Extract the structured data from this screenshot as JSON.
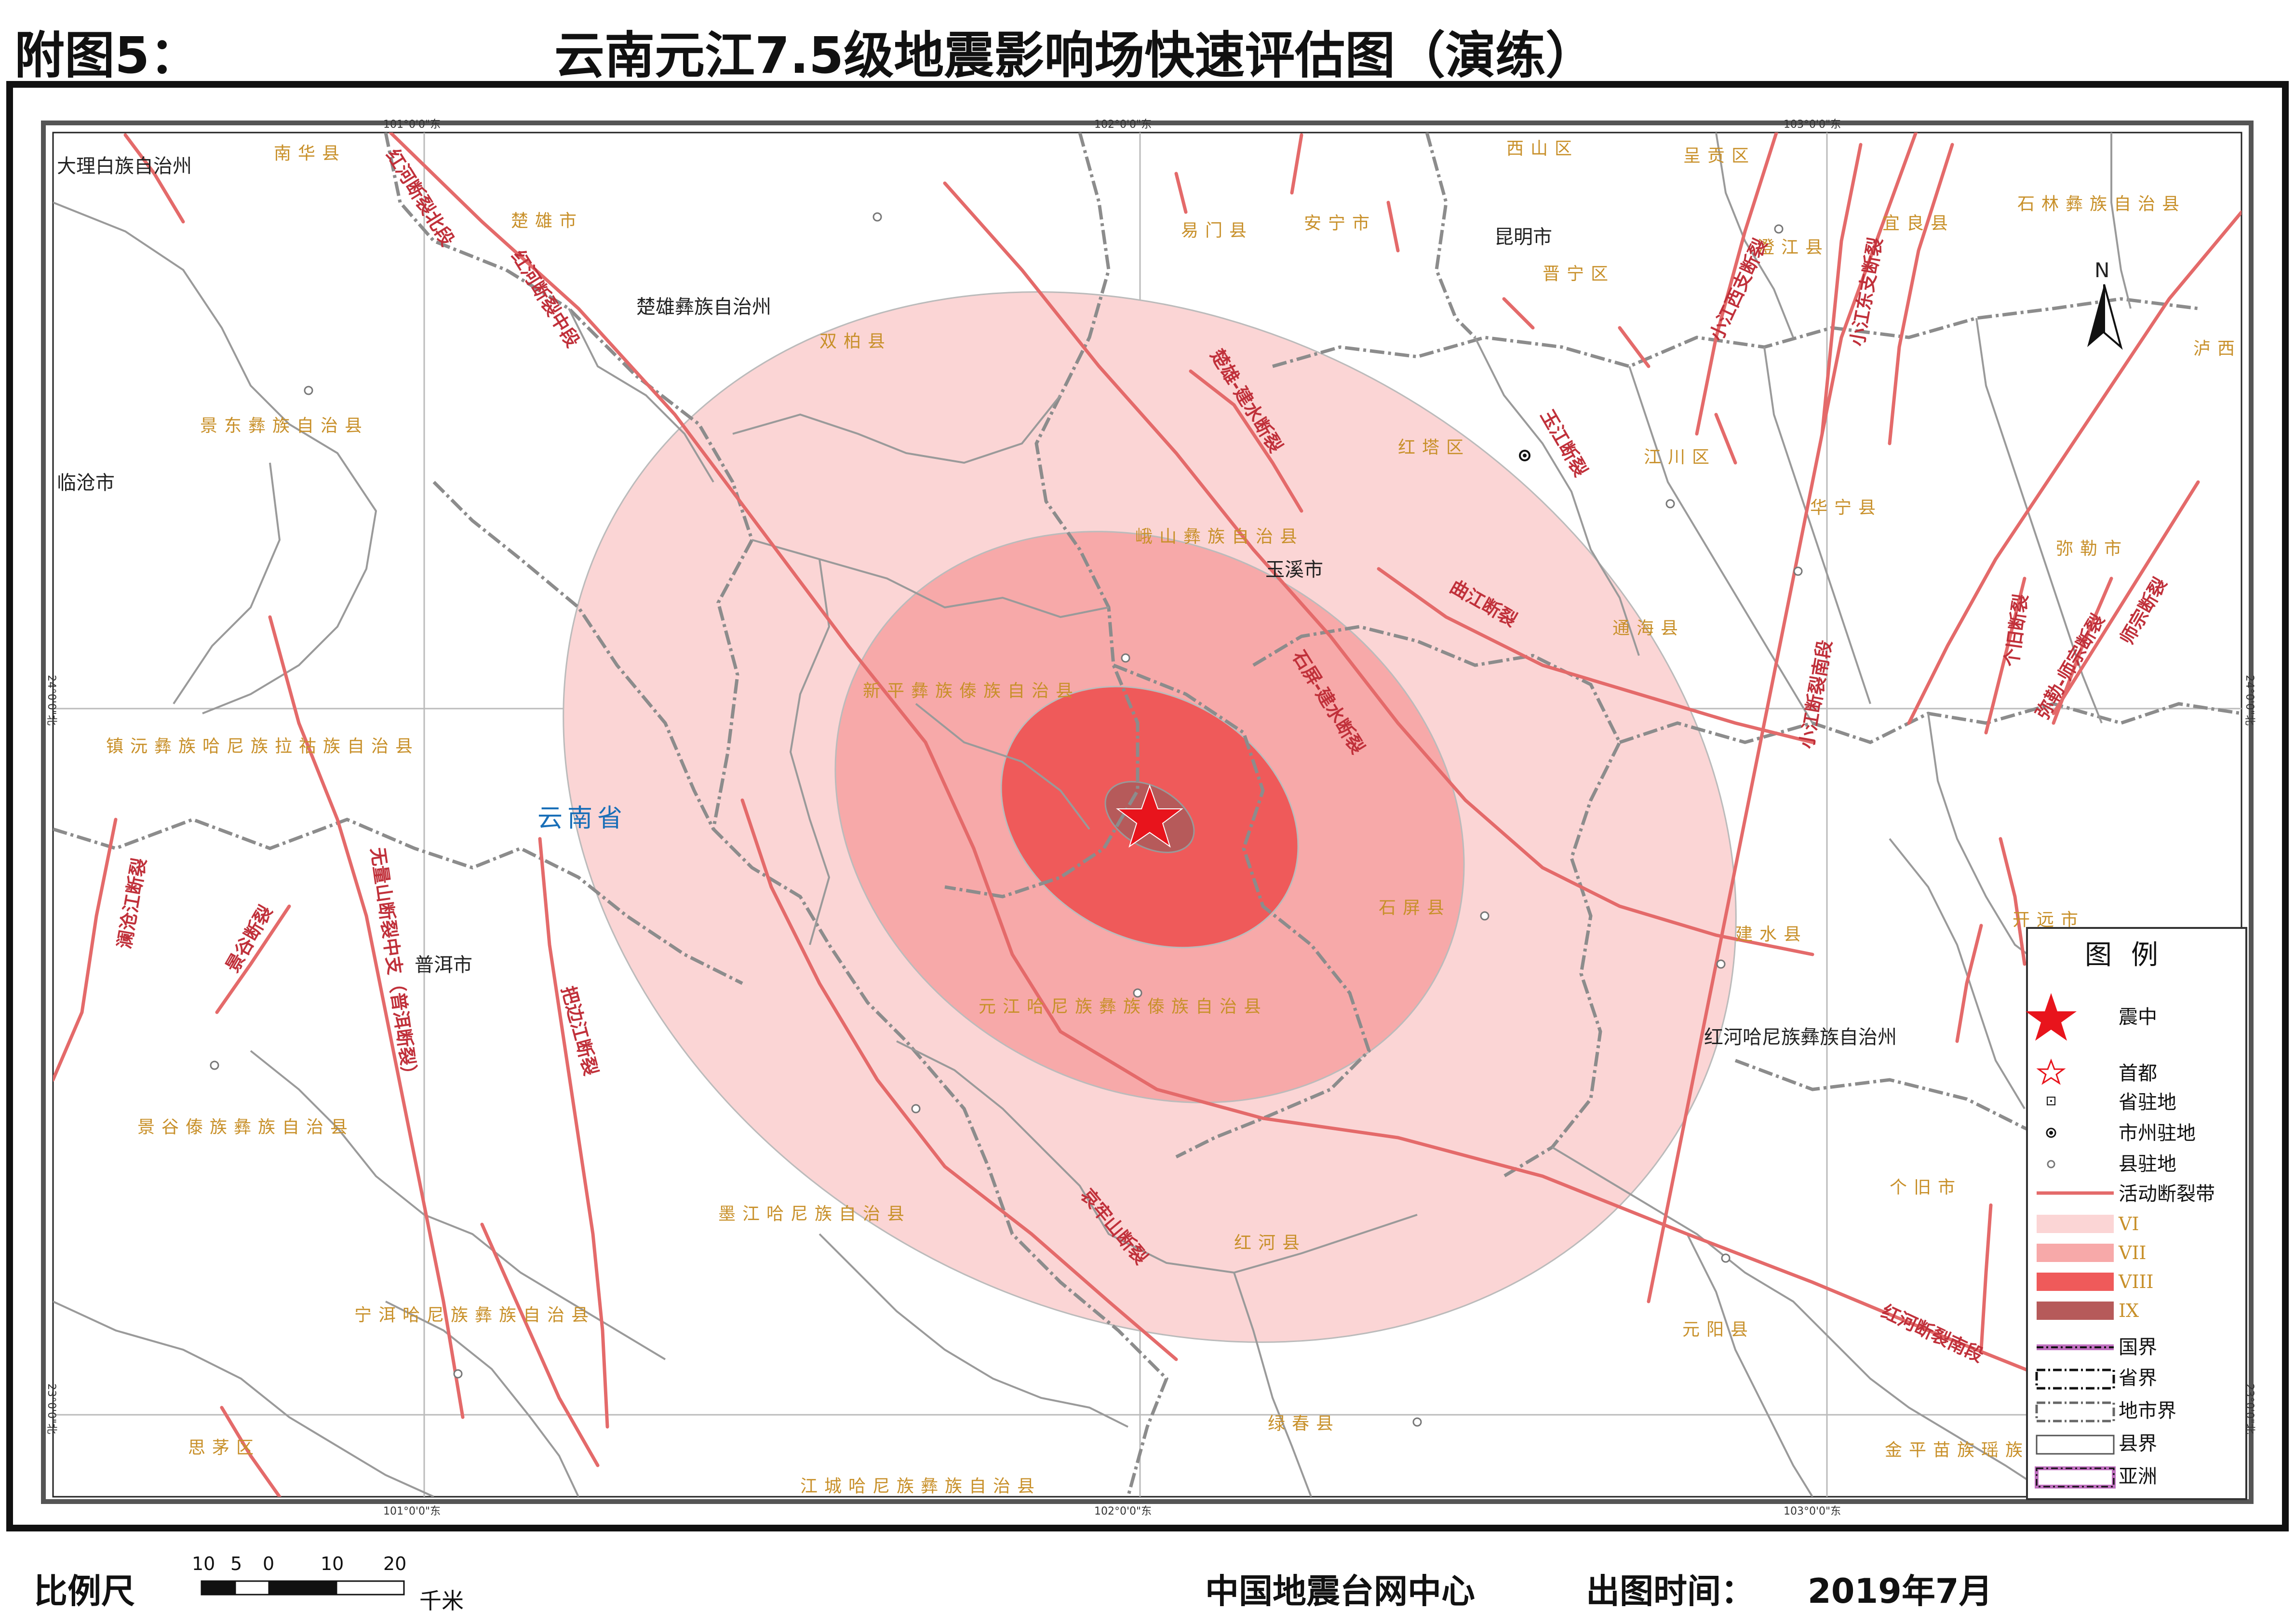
{
  "header": {
    "figure_label": "附图5：",
    "title": "云南元江7.5级地震影响场快速评估图（演练）"
  },
  "map": {
    "province_label": "云南省",
    "coords": {
      "top": [
        "101°0'0\"东",
        "102°0'0\"东",
        "103°0'0\"东"
      ],
      "bottom": [
        "101°0'0\"东",
        "102°0'0\"东",
        "103°0'0\"东"
      ],
      "left": [
        "24°0'0\"北",
        "23°0'0\"北"
      ],
      "right": [
        "24°0'0\"北",
        "23°0'0\"北"
      ]
    },
    "places_orange": [
      "南华县",
      "楚雄市",
      "双柏县",
      "景东彝族自治县",
      "易门县",
      "安宁市",
      "西山区",
      "呈贡区",
      "石林彝族自治县",
      "晋宁区",
      "澄江县",
      "宜良县",
      "泸西县",
      "红塔区",
      "江川区",
      "华宁县",
      "峨山彝族自治县",
      "弥勒市",
      "通海县",
      "新平彝族傣族自治县",
      "镇沅彝族哈尼族拉祜族自治县",
      "石屏县",
      "建水县",
      "开远市",
      "元江哈尼族彝族傣族自治县",
      "景谷傣族彝族自治县",
      "墨江哈尼族自治县",
      "红河县",
      "个旧市",
      "元阳县",
      "宁洱哈尼族彝族自治县",
      "绿春县",
      "思茅区",
      "江城哈尼族彝族自治县",
      "金平苗族瑶族傣族自治县"
    ],
    "places_black": [
      "大理白族自治州",
      "楚雄彝族自治州",
      "昆明市",
      "临沧市",
      "玉溪市",
      "普洱市",
      "红河哈尼族彝族自治州"
    ],
    "faults": [
      "红河断裂北段",
      "红河断裂中段",
      "楚雄-建水断裂",
      "玉江断裂",
      "曲江断裂",
      "石屏-建水断裂",
      "小江西支断裂",
      "小江东支断裂",
      "弥勒-师宗断裂",
      "小江断裂南段",
      "个旧断裂",
      "澜沧江断裂",
      "景谷断裂",
      "无量山断裂中支（普洱断裂）",
      "把边江断裂",
      "哀牢山断裂",
      "红河断裂南段",
      "师宗断裂"
    ],
    "north_label": "N"
  },
  "legend": {
    "title": "图例",
    "items": [
      {
        "key": "epicenter",
        "label": "震中"
      },
      {
        "key": "capital",
        "label": "首都"
      },
      {
        "key": "province_seat",
        "label": "省驻地"
      },
      {
        "key": "prefecture_seat",
        "label": "市州驻地"
      },
      {
        "key": "county_seat",
        "label": "县驻地"
      },
      {
        "key": "fault",
        "label": "活动断裂带"
      },
      {
        "key": "vi",
        "label": "VI"
      },
      {
        "key": "vii",
        "label": "VII"
      },
      {
        "key": "viii",
        "label": "VIII"
      },
      {
        "key": "ix",
        "label": "IX"
      },
      {
        "key": "national",
        "label": "国界"
      },
      {
        "key": "provincial",
        "label": "省界"
      },
      {
        "key": "prefecture",
        "label": "地市界"
      },
      {
        "key": "county",
        "label": "县界"
      },
      {
        "key": "asia",
        "label": "亚洲"
      }
    ],
    "colors": {
      "vi": "#fbd5d5",
      "vii": "#f7a9a9",
      "viii": "#ef5a5a",
      "ix": "#b65a5a",
      "fault": "#e46a6a",
      "epicenter": "#e8141c"
    }
  },
  "footer": {
    "scale_label": "比例尺",
    "scale_numbers": [
      "10",
      "5",
      "0",
      "10",
      "20"
    ],
    "scale_unit": "千米",
    "agency": "中国地震台网中心",
    "date_label": "出图时间：",
    "date_value": "2019年7月"
  }
}
